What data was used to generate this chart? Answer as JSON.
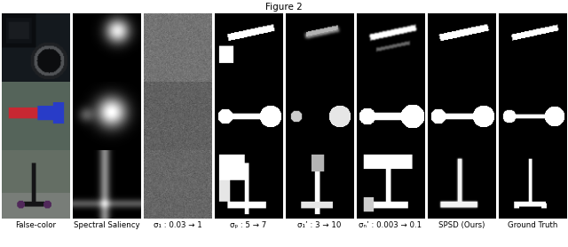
{
  "title": "Figure 2",
  "col_labels": [
    "False-color",
    "Spectral Saliency",
    "σ₁ : 0.03 → 1",
    "σₚ : 5 → 7",
    "σ₁’ : 3 → 10",
    "σₙ’ : 0.003 → 0.1",
    "SPSD (Ours)",
    "Ground Truth"
  ],
  "n_rows": 3,
  "n_cols": 8,
  "label_fontsize": 6.2,
  "figure_width": 6.4,
  "figure_height": 2.78
}
